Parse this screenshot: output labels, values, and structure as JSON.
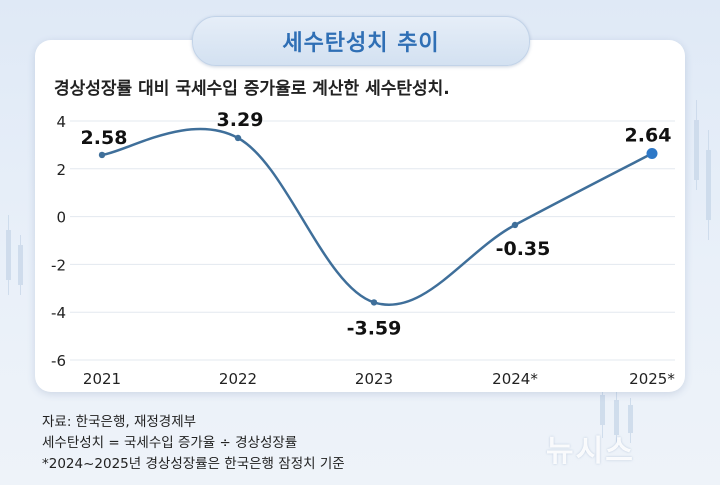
{
  "header": {
    "title": "세수탄성치 추이",
    "subtitle": "경상성장률 대비 국세수입 증가율로 계산한 세수탄성치."
  },
  "chart_data": {
    "type": "line",
    "categories": [
      "2021",
      "2022",
      "2023",
      "2024*",
      "2025*"
    ],
    "series": [
      {
        "values": [
          2.58,
          3.29,
          -3.59,
          -0.35,
          2.64
        ]
      }
    ],
    "data_labels": [
      "2.58",
      "3.29",
      "-3.59",
      "-0.35",
      "2.64"
    ],
    "yticks": [
      4,
      2,
      0,
      -2,
      -4,
      -6
    ],
    "ylim": [
      -6,
      4
    ],
    "grid": true,
    "line_color": "#3f6f9a",
    "highlight_color": "#2e78c7"
  },
  "footer": {
    "source": "자료: 한국은행, 재정경제부",
    "formula": "세수탄성치 = 국세수입 증가율 ÷ 경상성장률",
    "note": "*2024~2025년 경상성장률은 한국은행 잠정치 기준"
  },
  "branding": {
    "logo_text": "뉴시스"
  }
}
